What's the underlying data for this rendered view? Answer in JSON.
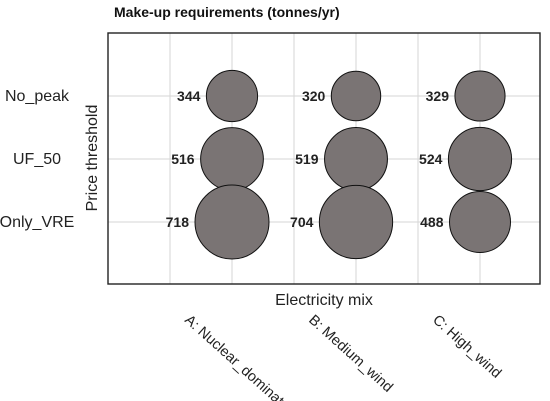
{
  "chart_data": {
    "type": "scatter",
    "subtype": "bubble-matrix",
    "title": "Make-up requirements (tonnes/yr)",
    "xlabel": "Electricity mix",
    "ylabel": "Price threshold",
    "x_categories": [
      "A: Nuclear_dominated",
      "B: Medium_wind",
      "C: High_wind"
    ],
    "y_categories": [
      "No_peak",
      "UF_50",
      "Only_VRE"
    ],
    "values": [
      [
        344,
        320,
        329
      ],
      [
        516,
        519,
        524
      ],
      [
        718,
        704,
        488
      ]
    ],
    "bubble_color": "#7a7474",
    "grid": true,
    "legend": "none"
  }
}
